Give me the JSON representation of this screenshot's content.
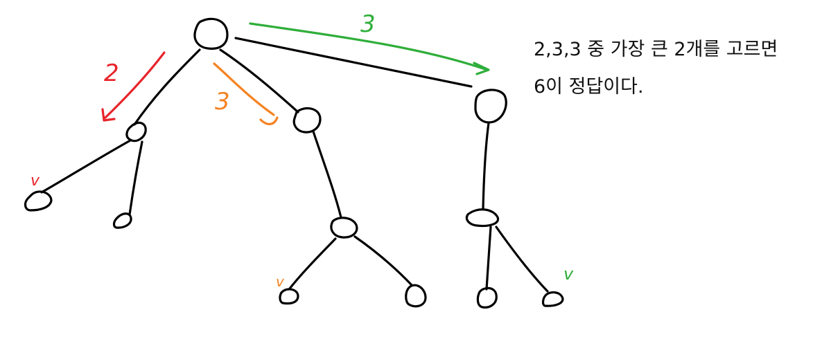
{
  "note": {
    "line1": "2,3,3 중 가장 큰 2개를 고르면",
    "line2": "6이 정답이다."
  },
  "annotations": {
    "red_edge_label": "2",
    "orange_edge_label": "3",
    "green_edge_label": "3",
    "red_check": "v",
    "orange_check": "v",
    "green_check": "v"
  },
  "colors": {
    "ink": "#000000",
    "red": "#e8242b",
    "orange": "#f58220",
    "green": "#2fae3a"
  }
}
